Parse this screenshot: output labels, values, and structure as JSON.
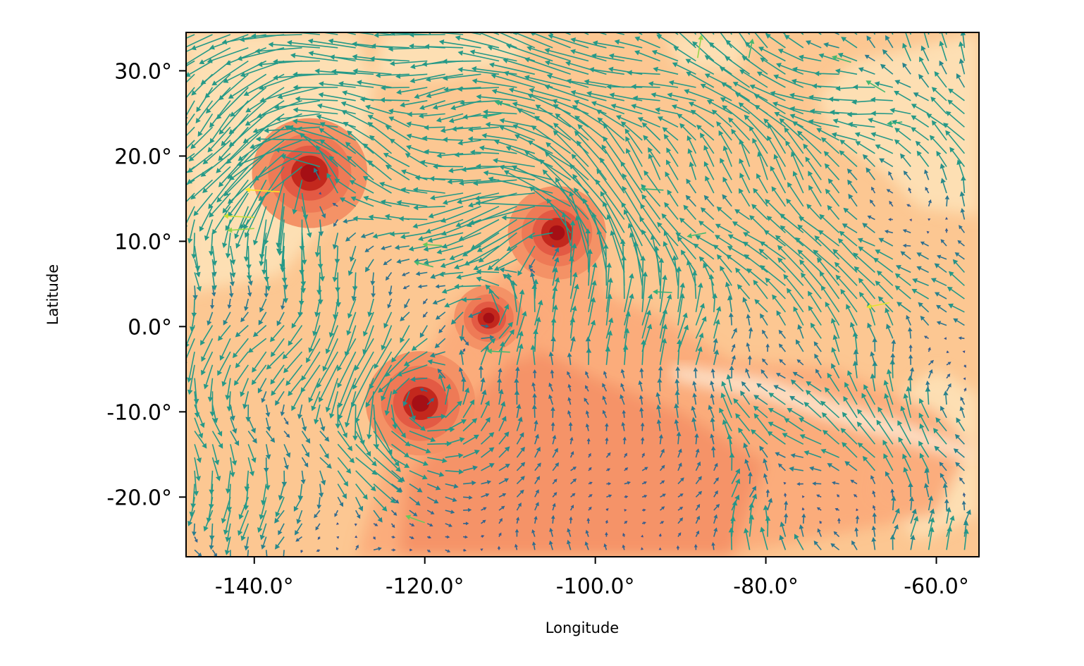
{
  "chart_data": {
    "type": "quiver",
    "background": "contourf",
    "title": "",
    "xlabel": "Longitude",
    "ylabel": "Latitude",
    "xlim": [
      -148,
      -55
    ],
    "ylim": [
      -27,
      34.5
    ],
    "xticks": [
      -140,
      -120,
      -100,
      -80,
      -60
    ],
    "yticks": [
      -20,
      -10,
      0,
      10,
      20,
      30
    ],
    "xtick_labels": [
      "-140.0°",
      "-120.0°",
      "-100.0°",
      "-80.0°",
      "-60.0°"
    ],
    "ytick_labels": [
      "-20.0°",
      "-10.0°",
      "0.0°",
      "10.0°",
      "20.0°",
      "30.0°"
    ],
    "grid": false,
    "legend": "none",
    "field_colormap": [
      "#fdf3e1",
      "#fde0b5",
      "#fcc792",
      "#fbab7a",
      "#f49266",
      "#e35a44",
      "#c3281d",
      "#a50f15"
    ],
    "arrow_colormap": [
      "#3d4b8c",
      "#2a788e",
      "#22a884",
      "#7ad151",
      "#fde725"
    ],
    "vortices": [
      {
        "lon": -133.5,
        "lat": 18.0,
        "intensity": 1.0
      },
      {
        "lon": -120.5,
        "lat": -9.0,
        "intensity": 0.95
      },
      {
        "lon": -104.5,
        "lat": 11.0,
        "intensity": 0.85
      },
      {
        "lon": -112.5,
        "lat": 1.0,
        "intensity": 0.6
      }
    ],
    "strong_winds": [
      {
        "lon": -137,
        "lat": 15.8,
        "u": -9,
        "v": 0.6,
        "speed": 1.0
      },
      {
        "lon": -140,
        "lat": 12.8,
        "u": -8,
        "v": 0.4,
        "speed": 0.9
      },
      {
        "lon": -140,
        "lat": 11.5,
        "u": -7,
        "v": -0.5,
        "speed": 0.8
      },
      {
        "lon": -118,
        "lat": 9.5,
        "u": -5,
        "v": 0.3,
        "speed": 0.7
      },
      {
        "lon": -119,
        "lat": 7.0,
        "u": -5,
        "v": 1.3,
        "speed": 0.6
      },
      {
        "lon": -120,
        "lat": -23.0,
        "u": -5,
        "v": 1.8,
        "speed": 0.7
      },
      {
        "lon": -110,
        "lat": 26.0,
        "u": -4,
        "v": 0.8,
        "speed": 0.55
      },
      {
        "lon": -111,
        "lat": 25.0,
        "u": -5,
        "v": -1.0,
        "speed": 0.5
      },
      {
        "lon": -92,
        "lat": 16.0,
        "u": -6,
        "v": 0.4,
        "speed": 0.55
      },
      {
        "lon": -88,
        "lat": 31.5,
        "u": 1,
        "v": 6,
        "speed": 0.8
      },
      {
        "lon": -82,
        "lat": 31.5,
        "u": 1,
        "v": 5,
        "speed": 0.6
      },
      {
        "lon": -87,
        "lat": 11.0,
        "u": -5,
        "v": -1.0,
        "speed": 0.6
      },
      {
        "lon": -65.5,
        "lat": 2.8,
        "u": -6,
        "v": -1.2,
        "speed": 0.95
      },
      {
        "lon": -64,
        "lat": 24.0,
        "u": -4,
        "v": -0.5,
        "speed": 0.55
      },
      {
        "lon": -66,
        "lat": 27.5,
        "u": -5,
        "v": 3.0,
        "speed": 0.6
      },
      {
        "lon": -70,
        "lat": 31.0,
        "u": -5,
        "v": 1.5,
        "speed": 0.6
      },
      {
        "lon": -91,
        "lat": 4.0,
        "u": -5,
        "v": 0.2,
        "speed": 0.55
      },
      {
        "lon": -110,
        "lat": -3.0,
        "u": -6,
        "v": 0.3,
        "speed": 0.6
      }
    ]
  }
}
